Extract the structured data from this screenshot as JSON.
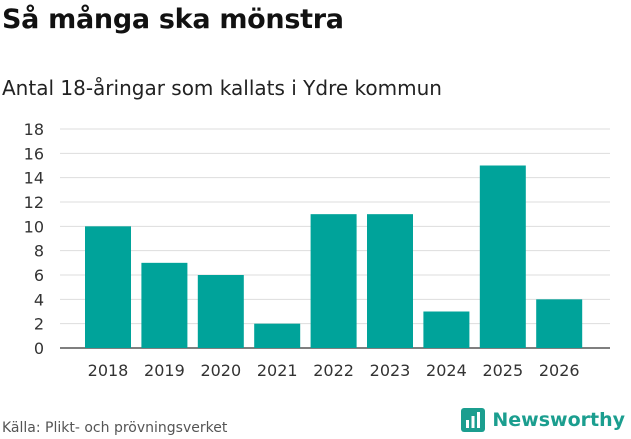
{
  "header": {
    "title": "Så många ska mönstra",
    "subtitle": "Antal 18-åringar som kallats i Ydre kommun"
  },
  "footer": {
    "source": "Källa: Plikt- och prövningsverket",
    "brand": "Newsworthy",
    "brand_icon": "bar-chart-icon",
    "brand_color": "#1b9e8f"
  },
  "chart_data": {
    "type": "bar",
    "categories": [
      "2018",
      "2019",
      "2020",
      "2021",
      "2022",
      "2023",
      "2024",
      "2025",
      "2026"
    ],
    "values": [
      10,
      7,
      6,
      2,
      11,
      11,
      3,
      15,
      4
    ],
    "title": "Så många ska mönstra",
    "subtitle": "Antal 18-åringar som kallats i Ydre kommun",
    "xlabel": "",
    "ylabel": "",
    "ylim": [
      0,
      18
    ],
    "yticks": [
      0,
      2,
      4,
      6,
      8,
      10,
      12,
      14,
      16,
      18
    ],
    "grid": true,
    "legend": "none",
    "bar_color": "#00a39a"
  }
}
